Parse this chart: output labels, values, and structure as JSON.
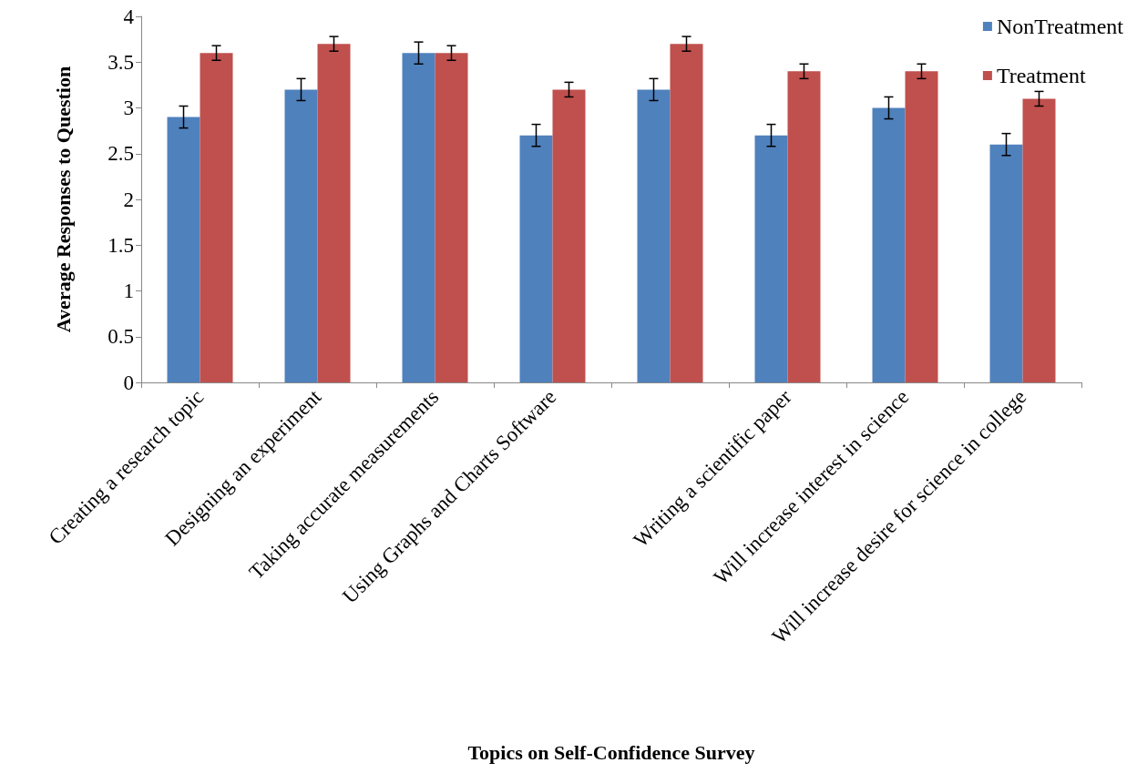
{
  "chart_data": {
    "type": "bar",
    "xlabel": "Topics on Self-Confidence Survey",
    "ylabel": "Average Responses to Question",
    "categories": [
      "Creating a research topic",
      "Designing an experiment",
      "Taking accurate measurements",
      "Using Graphs and Charts Software",
      null,
      "Writing a scientific paper",
      "Will increase interest in science",
      "Will increase desire for science in college"
    ],
    "series": [
      {
        "name": "NonTreatment",
        "color": "#4f81bd",
        "values": [
          2.9,
          3.2,
          3.6,
          2.7,
          3.2,
          2.7,
          3.0,
          2.6
        ],
        "errors": [
          0.12,
          0.12,
          0.12,
          0.12,
          0.12,
          0.12,
          0.12,
          0.12
        ]
      },
      {
        "name": "Treatment",
        "color": "#c0504d",
        "values": [
          3.6,
          3.7,
          3.6,
          3.2,
          3.7,
          3.4,
          3.4,
          3.1
        ],
        "errors": [
          0.08,
          0.08,
          0.08,
          0.08,
          0.08,
          0.08,
          0.08,
          0.08
        ]
      }
    ],
    "ylim": [
      0,
      4
    ],
    "yticks": [
      0,
      0.5,
      1,
      1.5,
      2,
      2.5,
      3,
      3.5,
      4
    ],
    "legend": "top right"
  }
}
